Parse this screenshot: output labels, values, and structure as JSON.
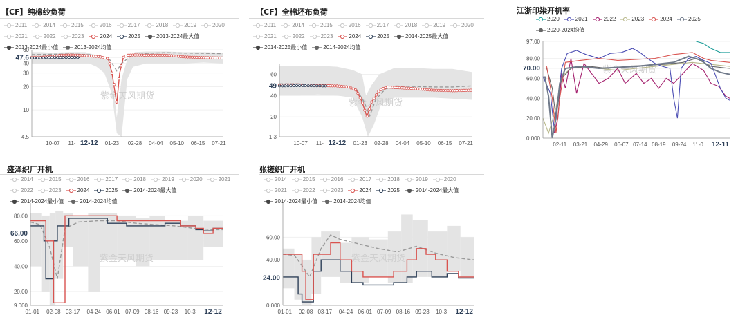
{
  "watermark": "紫金天风期货",
  "chart_data": [
    {
      "id": "p1",
      "type": "line",
      "title": "【CF】纯棉纱负荷",
      "legend": [
        "2011",
        "2014",
        "2015",
        "2016",
        "2017",
        "2018",
        "2019",
        "2020",
        "2021",
        "2022",
        "2023",
        "2024",
        "2025",
        "2013-2024最大值",
        "2013-2024最小值",
        "2013-2024均值"
      ],
      "active": [
        "2024",
        "2025",
        "2013-2024最大值",
        "2013-2024最小值",
        "2013-2024均值"
      ],
      "yticks": [
        "60",
        "47.6",
        "40",
        "30",
        "20",
        "10",
        "4.5"
      ],
      "yvals": [
        60,
        47.6,
        40,
        30,
        20,
        10,
        4.5
      ],
      "ylim": [
        4.5,
        60
      ],
      "xticks": [
        "10-07",
        "11-",
        "12-12",
        "01-23",
        "02-28",
        "04-04",
        "05-10",
        "06-15",
        "07-21"
      ],
      "xpos": [
        0.11,
        0.21,
        0.3,
        0.42,
        0.54,
        0.65,
        0.76,
        0.87,
        0.98
      ],
      "bold_tick": "12-12",
      "value_label": "47.6",
      "band_upper": [
        [
          0,
          56
        ],
        [
          0.05,
          56
        ],
        [
          0.1,
          55
        ],
        [
          0.2,
          56
        ],
        [
          0.28,
          56
        ],
        [
          0.3,
          54
        ],
        [
          0.36,
          50
        ],
        [
          0.4,
          44
        ],
        [
          0.42,
          28
        ],
        [
          0.445,
          8
        ],
        [
          0.47,
          25
        ],
        [
          0.5,
          45
        ],
        [
          0.54,
          56
        ],
        [
          0.6,
          57
        ],
        [
          0.7,
          57
        ],
        [
          0.8,
          56
        ],
        [
          0.9,
          56
        ],
        [
          1,
          55
        ]
      ],
      "band_lower": [
        [
          0,
          40
        ],
        [
          0.1,
          40
        ],
        [
          0.2,
          40
        ],
        [
          0.3,
          40
        ],
        [
          0.34,
          36
        ],
        [
          0.38,
          30
        ],
        [
          0.42,
          16
        ],
        [
          0.445,
          5
        ],
        [
          0.47,
          4.5
        ],
        [
          0.5,
          25
        ],
        [
          0.53,
          36
        ],
        [
          0.6,
          40
        ],
        [
          0.7,
          40
        ],
        [
          0.8,
          40
        ],
        [
          0.9,
          41
        ],
        [
          1,
          40
        ]
      ],
      "s2024": [
        [
          0,
          48
        ],
        [
          0.05,
          48
        ],
        [
          0.1,
          49
        ],
        [
          0.15,
          51
        ],
        [
          0.2,
          51.5
        ],
        [
          0.25,
          51
        ],
        [
          0.3,
          50
        ],
        [
          0.35,
          49
        ],
        [
          0.4,
          46
        ],
        [
          0.42,
          30
        ],
        [
          0.445,
          12
        ],
        [
          0.46,
          30
        ],
        [
          0.48,
          48
        ],
        [
          0.5,
          51
        ],
        [
          0.55,
          51.5
        ],
        [
          0.6,
          51
        ],
        [
          0.65,
          51
        ],
        [
          0.7,
          51
        ],
        [
          0.75,
          50
        ],
        [
          0.78,
          49
        ],
        [
          0.8,
          48.5
        ],
        [
          0.85,
          48
        ],
        [
          0.9,
          47.5
        ],
        [
          0.95,
          47.2
        ],
        [
          1,
          47
        ]
      ],
      "s2025": [
        [
          0,
          47
        ],
        [
          0.1,
          47.5
        ],
        [
          0.2,
          47.8
        ],
        [
          0.25,
          47.6
        ]
      ],
      "smean": [
        [
          0,
          52
        ],
        [
          0.1,
          52.5
        ],
        [
          0.2,
          53
        ],
        [
          0.3,
          52
        ],
        [
          0.36,
          50
        ],
        [
          0.41,
          44
        ],
        [
          0.445,
          32
        ],
        [
          0.47,
          40
        ],
        [
          0.52,
          50
        ],
        [
          0.6,
          54
        ],
        [
          0.7,
          55
        ],
        [
          0.8,
          54.5
        ],
        [
          0.9,
          54
        ],
        [
          1,
          53.5
        ]
      ]
    },
    {
      "id": "p2",
      "type": "line",
      "title": "【CF】全棉坯布负荷",
      "legend": [
        "2011",
        "2014",
        "2015",
        "2016",
        "2017",
        "2018",
        "2019",
        "2020",
        "2021",
        "2022",
        "2023",
        "2024",
        "2025",
        "2014-2025最大值",
        "2014-2025最小值",
        "2014-2024均值"
      ],
      "active": [
        "2024",
        "2025",
        "2014-2025最大值",
        "2014-2025最小值",
        "2014-2024均值"
      ],
      "yticks": [
        "60",
        "49",
        "40",
        "20",
        "1.3"
      ],
      "yvals": [
        60,
        49,
        40,
        20,
        1.3
      ],
      "ylim": [
        1.3,
        70
      ],
      "xticks": [
        "10-07",
        "11-",
        "12-12",
        "01-23",
        "02-28",
        "04-04",
        "05-10",
        "06-15",
        "07-21"
      ],
      "xpos": [
        0.11,
        0.21,
        0.3,
        0.42,
        0.53,
        0.64,
        0.75,
        0.86,
        0.97
      ],
      "bold_tick": "12-12",
      "value_label": "49",
      "band_upper": [
        [
          0,
          68
        ],
        [
          0.1,
          68
        ],
        [
          0.2,
          68
        ],
        [
          0.3,
          67
        ],
        [
          0.38,
          64
        ],
        [
          0.43,
          60
        ],
        [
          0.45,
          40
        ],
        [
          0.48,
          50
        ],
        [
          0.52,
          60
        ],
        [
          0.6,
          66
        ],
        [
          0.7,
          66
        ],
        [
          0.8,
          65
        ],
        [
          0.9,
          65
        ],
        [
          1,
          62
        ]
      ],
      "band_lower": [
        [
          0,
          40
        ],
        [
          0.1,
          40
        ],
        [
          0.2,
          41
        ],
        [
          0.3,
          40
        ],
        [
          0.38,
          38
        ],
        [
          0.43,
          20
        ],
        [
          0.46,
          1.3
        ],
        [
          0.49,
          12
        ],
        [
          0.53,
          32
        ],
        [
          0.6,
          38
        ],
        [
          0.7,
          38
        ],
        [
          0.8,
          38
        ],
        [
          0.9,
          37
        ],
        [
          1,
          36
        ]
      ],
      "s2024": [
        [
          0,
          50
        ],
        [
          0.1,
          50
        ],
        [
          0.2,
          49.5
        ],
        [
          0.3,
          49
        ],
        [
          0.36,
          48
        ],
        [
          0.4,
          45
        ],
        [
          0.43,
          34
        ],
        [
          0.455,
          20
        ],
        [
          0.48,
          34
        ],
        [
          0.52,
          45
        ],
        [
          0.56,
          48
        ],
        [
          0.6,
          47.5
        ],
        [
          0.7,
          46.5
        ],
        [
          0.8,
          45
        ],
        [
          0.9,
          44.5
        ],
        [
          1,
          45
        ]
      ],
      "s2025": [
        [
          0,
          49
        ],
        [
          0.1,
          49.3
        ],
        [
          0.2,
          49.1
        ],
        [
          0.25,
          49
        ]
      ],
      "smean": [
        [
          0,
          51
        ],
        [
          0.1,
          51
        ],
        [
          0.2,
          50
        ],
        [
          0.3,
          49.5
        ],
        [
          0.4,
          46
        ],
        [
          0.44,
          34
        ],
        [
          0.47,
          21
        ],
        [
          0.5,
          36
        ],
        [
          0.55,
          46
        ],
        [
          0.6,
          49
        ],
        [
          0.7,
          48.5
        ],
        [
          0.8,
          48
        ],
        [
          0.9,
          48
        ],
        [
          1,
          49
        ]
      ]
    },
    {
      "id": "p3",
      "type": "line",
      "title": "江浙印染开机率",
      "legend": [
        "2020",
        "2021",
        "2022",
        "2023",
        "2024",
        "2025",
        "2020-2024均值"
      ],
      "colors": [
        "#1f9e9a",
        "#4b4db3",
        "#a4206e",
        "#b8b88a",
        "#d9534f",
        "#707a8a",
        "#666666"
      ],
      "yticks": [
        "97.00",
        "80.00",
        "70.00",
        "60.00",
        "40.00",
        "20.00",
        "0.000"
      ],
      "yvals": [
        97,
        80,
        70,
        60,
        40,
        20,
        0
      ],
      "ylim": [
        0,
        97
      ],
      "xticks": [
        "02-11",
        "03-21",
        "04-29",
        "06-07",
        "07-14",
        "08-19",
        "09-24",
        "11-0",
        "12-11"
      ],
      "xpos": [
        0.09,
        0.2,
        0.31,
        0.42,
        0.52,
        0.62,
        0.73,
        0.83,
        0.95
      ],
      "bold_tick": "12-11",
      "value_label": "70.00"
    },
    {
      "id": "p4",
      "type": "line",
      "title": "盛泽织厂开机",
      "legend": [
        "2014",
        "2015",
        "2016",
        "2017",
        "2018",
        "2019",
        "2020",
        "2021",
        "2022",
        "2023",
        "2024",
        "2025",
        "2014-2024最大值",
        "2014-2024最小值",
        "2014-2024均值"
      ],
      "active": [
        "2024",
        "2025",
        "2014-2024最大值",
        "2014-2024最小值",
        "2014-2024均值"
      ],
      "yticks": [
        "80.00",
        "66.00",
        "60.00",
        "40.00",
        "20.00",
        "9.000"
      ],
      "yvals": [
        80,
        66,
        60,
        40,
        20,
        9
      ],
      "ylim": [
        9,
        90
      ],
      "xticks": [
        "01-01",
        "02-08",
        "03-17",
        "04-24",
        "06-01",
        "07-09",
        "08-16",
        "09-23",
        "10-3",
        "12-12"
      ],
      "xpos": [
        0.01,
        0.12,
        0.22,
        0.33,
        0.43,
        0.53,
        0.63,
        0.73,
        0.83,
        0.95
      ],
      "bold_tick": "12-12",
      "value_label": "66.00"
    },
    {
      "id": "p5",
      "type": "line",
      "title": "张槎织厂开机",
      "legend": [
        "2014",
        "2015",
        "2016",
        "2017",
        "2018",
        "2019",
        "2020",
        "2021",
        "2022",
        "2023",
        "2024",
        "2025",
        "2014-2024最大值",
        "2014-2024最小值",
        "2014-2024均值"
      ],
      "active": [
        "2024",
        "2025",
        "2014-2024最大值",
        "2014-2024最小值",
        "2014-2024均值"
      ],
      "yticks": [
        "60.00",
        "40.00",
        "24.00",
        "0.000"
      ],
      "yvals": [
        60,
        40,
        24,
        0
      ],
      "ylim": [
        0,
        90
      ],
      "xticks": [
        "01-01",
        "02-08",
        "03-17",
        "04-24",
        "06-01",
        "07-09",
        "08-16",
        "09-23",
        "10-3",
        "12-12"
      ],
      "xpos": [
        0.01,
        0.12,
        0.22,
        0.33,
        0.43,
        0.53,
        0.63,
        0.73,
        0.83,
        0.95
      ],
      "bold_tick": "12-12",
      "value_label": "24.00"
    }
  ]
}
